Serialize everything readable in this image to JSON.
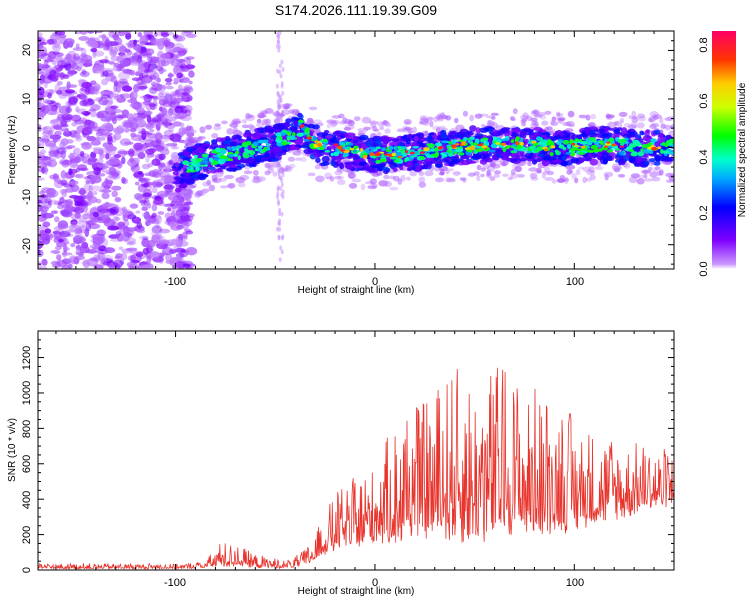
{
  "figure": {
    "title": "S174.2026.111.19.39.G09"
  },
  "chart_data": [
    {
      "type": "heatmap",
      "xlabel": "Height of straight line (km)",
      "ylabel": "Frequency (Hz)",
      "xlim": [
        -169,
        150
      ],
      "ylim": [
        -25,
        24
      ],
      "xticks": [
        -100,
        0,
        100
      ],
      "xtick_labels": [
        "-100",
        "0",
        "100"
      ],
      "yticks": [
        -20,
        -10,
        0,
        10,
        20
      ],
      "ytick_labels": [
        "-20",
        "-10",
        "0",
        "10",
        "20"
      ],
      "colorbar": {
        "label": "Normalized spectral amplitude",
        "range": [
          0,
          0.85
        ],
        "ticks": [
          0,
          0.2,
          0.4,
          0.6,
          0.8
        ],
        "tick_labels": [
          "0.0",
          "0.2",
          "0.4",
          "0.6",
          "0.8"
        ]
      },
      "ridge_trend": {
        "x": [
          -100,
          -95,
          -88,
          -80,
          -70,
          -60,
          -50,
          -42,
          -37,
          -32,
          -26,
          -20,
          -10,
          0,
          10,
          20,
          30,
          40,
          50,
          60,
          70,
          80,
          90,
          100,
          110,
          120,
          130,
          140,
          148
        ],
        "freq": [
          -6,
          -4,
          -3,
          -2,
          -1,
          0,
          1,
          2.5,
          4,
          1.5,
          0,
          0,
          -1,
          -1.5,
          -1.5,
          -1,
          -0.5,
          0,
          0.5,
          0.5,
          0.5,
          0.5,
          0,
          0,
          0.5,
          0.5,
          0,
          0,
          0
        ]
      },
      "noise_region_x": [
        -169,
        -92
      ]
    },
    {
      "type": "line",
      "xlabel": "Height of straight line (km)",
      "ylabel": "SNR (10 * v/v)",
      "xlim": [
        -169,
        150
      ],
      "ylim": [
        0,
        1350
      ],
      "xticks": [
        -100,
        0,
        100
      ],
      "xtick_labels": [
        "-100",
        "0",
        "100"
      ],
      "yticks": [
        0,
        200,
        400,
        600,
        800,
        1000,
        1200
      ],
      "ytick_labels": [
        "0",
        "200",
        "400",
        "600",
        "800",
        "1000",
        "1200"
      ],
      "color": "#e8342c",
      "envelope": {
        "x": [
          -169,
          -140,
          -110,
          -95,
          -85,
          -78,
          -70,
          -60,
          -50,
          -45,
          -40,
          -35,
          -30,
          -25,
          -20,
          -15,
          -10,
          -5,
          0,
          5,
          10,
          15,
          20,
          25,
          30,
          35,
          40,
          45,
          50,
          55,
          60,
          65,
          70,
          75,
          80,
          85,
          90,
          95,
          100,
          105,
          110,
          115,
          120,
          125,
          130,
          135,
          140,
          145,
          150
        ],
        "base": [
          10,
          10,
          10,
          10,
          15,
          30,
          35,
          20,
          15,
          15,
          20,
          40,
          60,
          110,
          140,
          160,
          150,
          170,
          200,
          210,
          220,
          240,
          250,
          260,
          250,
          260,
          260,
          260,
          260,
          260,
          270,
          280,
          280,
          290,
          290,
          290,
          290,
          290,
          290,
          300,
          320,
          330,
          340,
          340,
          360,
          380,
          380,
          390,
          400
        ],
        "amp": [
          25,
          25,
          25,
          25,
          40,
          120,
          110,
          70,
          50,
          40,
          50,
          80,
          130,
          200,
          300,
          260,
          340,
          360,
          400,
          520,
          560,
          600,
          620,
          650,
          720,
          760,
          800,
          760,
          760,
          800,
          820,
          850,
          760,
          700,
          680,
          660,
          640,
          600,
          540,
          460,
          440,
          420,
          400,
          360,
          330,
          300,
          290,
          280,
          260
        ]
      }
    }
  ]
}
